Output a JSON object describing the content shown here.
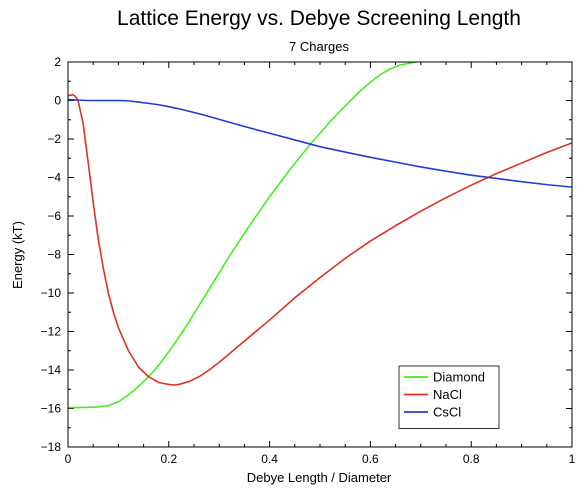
{
  "chart_data": {
    "type": "line",
    "title": "Lattice Energy vs. Debye Screening Length",
    "subtitle": "7 Charges",
    "xlabel": "Debye Length / Diameter",
    "ylabel": "Energy (kT)",
    "xlim": [
      0,
      1
    ],
    "ylim": [
      -18,
      2
    ],
    "xticks": [
      0,
      0.2,
      0.4,
      0.6,
      0.8,
      1
    ],
    "xtick_labels": [
      "0",
      "0.2",
      "0.4",
      "0.6",
      "0.8",
      "1"
    ],
    "yticks": [
      2,
      0,
      -2,
      -4,
      -6,
      -8,
      -10,
      -12,
      -14,
      -16,
      -18
    ],
    "ytick_labels": [
      "2",
      "0",
      "−2",
      "−4",
      "−6",
      "−8",
      "−10",
      "−12",
      "−14",
      "−16",
      "−18"
    ],
    "grid": false,
    "legend_position": "bottom-right",
    "series": [
      {
        "name": "Diamond",
        "color": "#44ee22",
        "x": [
          0,
          0.02,
          0.04,
          0.06,
          0.08,
          0.1,
          0.12,
          0.14,
          0.16,
          0.18,
          0.2,
          0.22,
          0.24,
          0.26,
          0.28,
          0.3,
          0.32,
          0.34,
          0.36,
          0.38,
          0.4,
          0.42,
          0.44,
          0.46,
          0.48,
          0.5,
          0.52,
          0.54,
          0.56,
          0.58,
          0.6,
          0.62,
          0.64,
          0.66,
          0.68,
          0.7
        ],
        "values": [
          -15.95,
          -15.95,
          -15.94,
          -15.92,
          -15.85,
          -15.65,
          -15.3,
          -14.85,
          -14.35,
          -13.75,
          -13.05,
          -12.3,
          -11.5,
          -10.65,
          -9.8,
          -8.95,
          -8.1,
          -7.3,
          -6.5,
          -5.75,
          -5.0,
          -4.3,
          -3.6,
          -2.95,
          -2.3,
          -1.7,
          -1.1,
          -0.55,
          -0.02,
          0.5,
          0.95,
          1.35,
          1.65,
          1.85,
          1.95,
          2.05
        ]
      },
      {
        "name": "NaCl",
        "color": "#dd3322",
        "x": [
          0,
          0.01,
          0.015,
          0.02,
          0.03,
          0.04,
          0.05,
          0.06,
          0.07,
          0.08,
          0.09,
          0.1,
          0.12,
          0.14,
          0.16,
          0.18,
          0.2,
          0.21,
          0.22,
          0.24,
          0.26,
          0.28,
          0.3,
          0.35,
          0.4,
          0.45,
          0.5,
          0.55,
          0.6,
          0.65,
          0.7,
          0.75,
          0.8,
          0.85,
          0.9,
          0.95,
          1.0
        ],
        "values": [
          0.25,
          0.3,
          0.2,
          0.0,
          -1.2,
          -3.2,
          -5.3,
          -7.2,
          -8.7,
          -10.0,
          -11.0,
          -11.8,
          -13.0,
          -13.85,
          -14.35,
          -14.65,
          -14.75,
          -14.78,
          -14.75,
          -14.6,
          -14.35,
          -14.0,
          -13.6,
          -12.5,
          -11.4,
          -10.25,
          -9.2,
          -8.2,
          -7.3,
          -6.5,
          -5.75,
          -5.05,
          -4.4,
          -3.8,
          -3.25,
          -2.7,
          -2.2
        ]
      },
      {
        "name": "CsCl",
        "color": "#1f3fd4",
        "x": [
          0,
          0.02,
          0.04,
          0.06,
          0.08,
          0.1,
          0.12,
          0.14,
          0.16,
          0.18,
          0.2,
          0.22,
          0.24,
          0.26,
          0.28,
          0.3,
          0.35,
          0.4,
          0.45,
          0.5,
          0.55,
          0.6,
          0.65,
          0.7,
          0.75,
          0.8,
          0.85,
          0.9,
          0.95,
          1.0
        ],
        "values": [
          0.05,
          0.02,
          0.0,
          0.0,
          0.0,
          0.0,
          -0.02,
          -0.08,
          -0.15,
          -0.22,
          -0.32,
          -0.43,
          -0.56,
          -0.69,
          -0.83,
          -0.98,
          -1.35,
          -1.7,
          -2.05,
          -2.4,
          -2.68,
          -2.95,
          -3.2,
          -3.45,
          -3.67,
          -3.88,
          -4.05,
          -4.22,
          -4.37,
          -4.5
        ]
      }
    ]
  }
}
